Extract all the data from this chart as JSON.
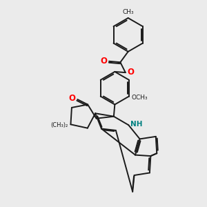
{
  "background_color": "#ebebeb",
  "bond_color": "#1a1a1a",
  "o_color": "#ff0000",
  "n_color": "#0000ff",
  "nh_color": "#008080",
  "line_width": 1.4,
  "figsize": [
    3.0,
    3.0
  ],
  "dpi": 100,
  "xlim": [
    0,
    10
  ],
  "ylim": [
    0,
    10
  ]
}
